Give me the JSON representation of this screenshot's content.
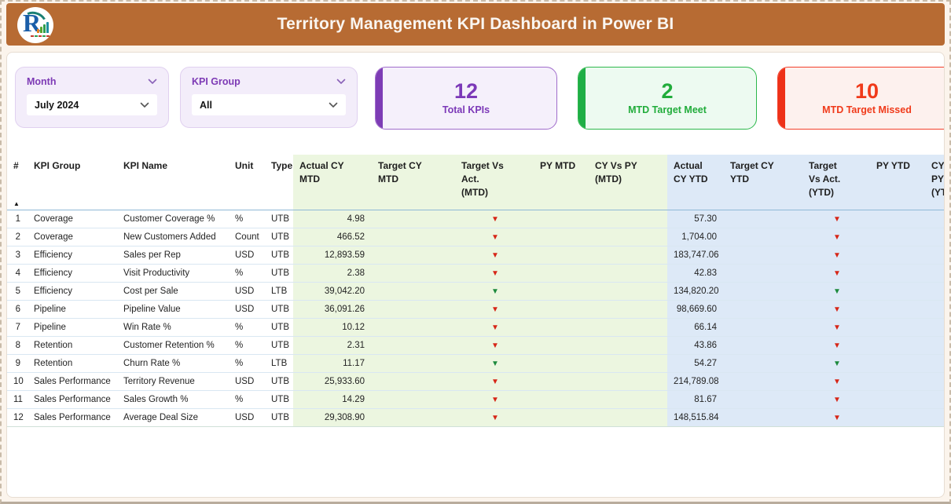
{
  "title_bar": {
    "title": "Territory Management KPI Dashboard in Power BI",
    "logo_letter": "R"
  },
  "filters": [
    {
      "label": "Month",
      "value": "July 2024"
    },
    {
      "label": "KPI Group",
      "value": "All"
    }
  ],
  "cards": [
    {
      "value": "12",
      "label": "Total KPIs",
      "bg": "#F5F0FB",
      "border": "#A06CCB",
      "bar": "#7D3CB5",
      "text": "#7C39B8"
    },
    {
      "value": "2",
      "label": "MTD Target Meet",
      "bg": "#EDFAF1",
      "border": "#2DB84C",
      "bar": "#1FAE46",
      "text": "#21AC3B"
    },
    {
      "value": "10",
      "label": "MTD Target Missed",
      "bg": "#FDF1EE",
      "border": "#F2402B",
      "bar": "#EE3118",
      "text": "#F03A1A"
    }
  ],
  "icons": {
    "down_arrow": "▼",
    "sort_ascending": "▲"
  },
  "colors": {
    "header_bar": "#B76B33",
    "page_background": "#FBF4EC",
    "mtd_group_background": "#ECF6E0",
    "ytd_group_background": "#DDE9F7",
    "arrow_red": "#D62617",
    "arrow_green": "#1C8A3C"
  },
  "table": {
    "columns": [
      {
        "key": "num",
        "label": "#",
        "group": "plain",
        "align": "right"
      },
      {
        "key": "group",
        "label": "KPI Group",
        "group": "plain",
        "align": "left"
      },
      {
        "key": "name",
        "label": "KPI Name",
        "group": "plain",
        "align": "left"
      },
      {
        "key": "unit",
        "label": "Unit",
        "group": "plain",
        "align": "left"
      },
      {
        "key": "type",
        "label": "Type",
        "group": "plain",
        "align": "left"
      },
      {
        "key": "actual_cy_mtd",
        "label": "Actual CY\nMTD",
        "group": "mtd",
        "align": "right"
      },
      {
        "key": "target_cy_mtd",
        "label": "Target CY\nMTD",
        "group": "mtd",
        "align": "right"
      },
      {
        "key": "tva_mtd",
        "label": "Target Vs\nAct.\n(MTD)",
        "group": "mtd",
        "align": "center"
      },
      {
        "key": "py_mtd",
        "label": "PY MTD",
        "group": "mtd",
        "align": "right"
      },
      {
        "key": "cyvspy_mtd",
        "label": "CY Vs PY\n(MTD)",
        "group": "mtd",
        "align": "right"
      },
      {
        "key": "actual_cy_ytd",
        "label": "Actual\nCY YTD",
        "group": "ytd",
        "align": "right"
      },
      {
        "key": "target_cy_ytd",
        "label": "Target CY\nYTD",
        "group": "ytd",
        "align": "right"
      },
      {
        "key": "tva_ytd",
        "label": "Target\nVs Act.\n(YTD)",
        "group": "ytd",
        "align": "center"
      },
      {
        "key": "py_ytd",
        "label": "PY YTD",
        "group": "ytd",
        "align": "right"
      },
      {
        "key": "cyvspy_ytd",
        "label": "CY Vs PY\n(YTD)",
        "group": "ytd",
        "align": "left"
      }
    ],
    "rows": [
      {
        "num": "1",
        "group": "Coverage",
        "name": "Customer Coverage %",
        "unit": "%",
        "type": "UTB",
        "actual_cy_mtd": "4.98",
        "target_cy_mtd": "",
        "tva_mtd": "red",
        "py_mtd": "",
        "cyvspy_mtd": "",
        "actual_cy_ytd": "57.30",
        "target_cy_ytd": "",
        "tva_ytd": "red",
        "py_ytd": "",
        "cyvspy_ytd": ""
      },
      {
        "num": "2",
        "group": "Coverage",
        "name": "New Customers Added",
        "unit": "Count",
        "type": "UTB",
        "actual_cy_mtd": "466.52",
        "target_cy_mtd": "",
        "tva_mtd": "red",
        "py_mtd": "",
        "cyvspy_mtd": "",
        "actual_cy_ytd": "1,704.00",
        "target_cy_ytd": "",
        "tva_ytd": "red",
        "py_ytd": "",
        "cyvspy_ytd": ""
      },
      {
        "num": "3",
        "group": "Efficiency",
        "name": "Sales per Rep",
        "unit": "USD",
        "type": "UTB",
        "actual_cy_mtd": "12,893.59",
        "target_cy_mtd": "",
        "tva_mtd": "red",
        "py_mtd": "",
        "cyvspy_mtd": "",
        "actual_cy_ytd": "183,747.06",
        "target_cy_ytd": "",
        "tva_ytd": "red",
        "py_ytd": "",
        "cyvspy_ytd": ""
      },
      {
        "num": "4",
        "group": "Efficiency",
        "name": "Visit Productivity",
        "unit": "%",
        "type": "UTB",
        "actual_cy_mtd": "2.38",
        "target_cy_mtd": "",
        "tva_mtd": "red",
        "py_mtd": "",
        "cyvspy_mtd": "",
        "actual_cy_ytd": "42.83",
        "target_cy_ytd": "",
        "tva_ytd": "red",
        "py_ytd": "",
        "cyvspy_ytd": ""
      },
      {
        "num": "5",
        "group": "Efficiency",
        "name": "Cost per Sale",
        "unit": "USD",
        "type": "LTB",
        "actual_cy_mtd": "39,042.20",
        "target_cy_mtd": "",
        "tva_mtd": "green",
        "py_mtd": "",
        "cyvspy_mtd": "",
        "actual_cy_ytd": "134,820.20",
        "target_cy_ytd": "",
        "tva_ytd": "green",
        "py_ytd": "",
        "cyvspy_ytd": ""
      },
      {
        "num": "6",
        "group": "Pipeline",
        "name": "Pipeline Value",
        "unit": "USD",
        "type": "UTB",
        "actual_cy_mtd": "36,091.26",
        "target_cy_mtd": "",
        "tva_mtd": "red",
        "py_mtd": "",
        "cyvspy_mtd": "",
        "actual_cy_ytd": "98,669.60",
        "target_cy_ytd": "",
        "tva_ytd": "red",
        "py_ytd": "",
        "cyvspy_ytd": ""
      },
      {
        "num": "7",
        "group": "Pipeline",
        "name": "Win Rate %",
        "unit": "%",
        "type": "UTB",
        "actual_cy_mtd": "10.12",
        "target_cy_mtd": "",
        "tva_mtd": "red",
        "py_mtd": "",
        "cyvspy_mtd": "",
        "actual_cy_ytd": "66.14",
        "target_cy_ytd": "",
        "tva_ytd": "red",
        "py_ytd": "",
        "cyvspy_ytd": ""
      },
      {
        "num": "8",
        "group": "Retention",
        "name": "Customer Retention %",
        "unit": "%",
        "type": "UTB",
        "actual_cy_mtd": "2.31",
        "target_cy_mtd": "",
        "tva_mtd": "red",
        "py_mtd": "",
        "cyvspy_mtd": "",
        "actual_cy_ytd": "43.86",
        "target_cy_ytd": "",
        "tva_ytd": "red",
        "py_ytd": "",
        "cyvspy_ytd": ""
      },
      {
        "num": "9",
        "group": "Retention",
        "name": "Churn Rate %",
        "unit": "%",
        "type": "LTB",
        "actual_cy_mtd": "11.17",
        "target_cy_mtd": "",
        "tva_mtd": "green",
        "py_mtd": "",
        "cyvspy_mtd": "",
        "actual_cy_ytd": "54.27",
        "target_cy_ytd": "",
        "tva_ytd": "green",
        "py_ytd": "",
        "cyvspy_ytd": ""
      },
      {
        "num": "10",
        "group": "Sales Performance",
        "name": "Territory Revenue",
        "unit": "USD",
        "type": "UTB",
        "actual_cy_mtd": "25,933.60",
        "target_cy_mtd": "",
        "tva_mtd": "red",
        "py_mtd": "",
        "cyvspy_mtd": "",
        "actual_cy_ytd": "214,789.08",
        "target_cy_ytd": "",
        "tva_ytd": "red",
        "py_ytd": "",
        "cyvspy_ytd": ""
      },
      {
        "num": "11",
        "group": "Sales Performance",
        "name": "Sales Growth %",
        "unit": "%",
        "type": "UTB",
        "actual_cy_mtd": "14.29",
        "target_cy_mtd": "",
        "tva_mtd": "red",
        "py_mtd": "",
        "cyvspy_mtd": "",
        "actual_cy_ytd": "81.67",
        "target_cy_ytd": "",
        "tva_ytd": "red",
        "py_ytd": "",
        "cyvspy_ytd": ""
      },
      {
        "num": "12",
        "group": "Sales Performance",
        "name": "Average Deal Size",
        "unit": "USD",
        "type": "UTB",
        "actual_cy_mtd": "29,308.90",
        "target_cy_mtd": "",
        "tva_mtd": "red",
        "py_mtd": "",
        "cyvspy_mtd": "",
        "actual_cy_ytd": "148,515.84",
        "target_cy_ytd": "",
        "tva_ytd": "red",
        "py_ytd": "",
        "cyvspy_ytd": ""
      }
    ]
  }
}
